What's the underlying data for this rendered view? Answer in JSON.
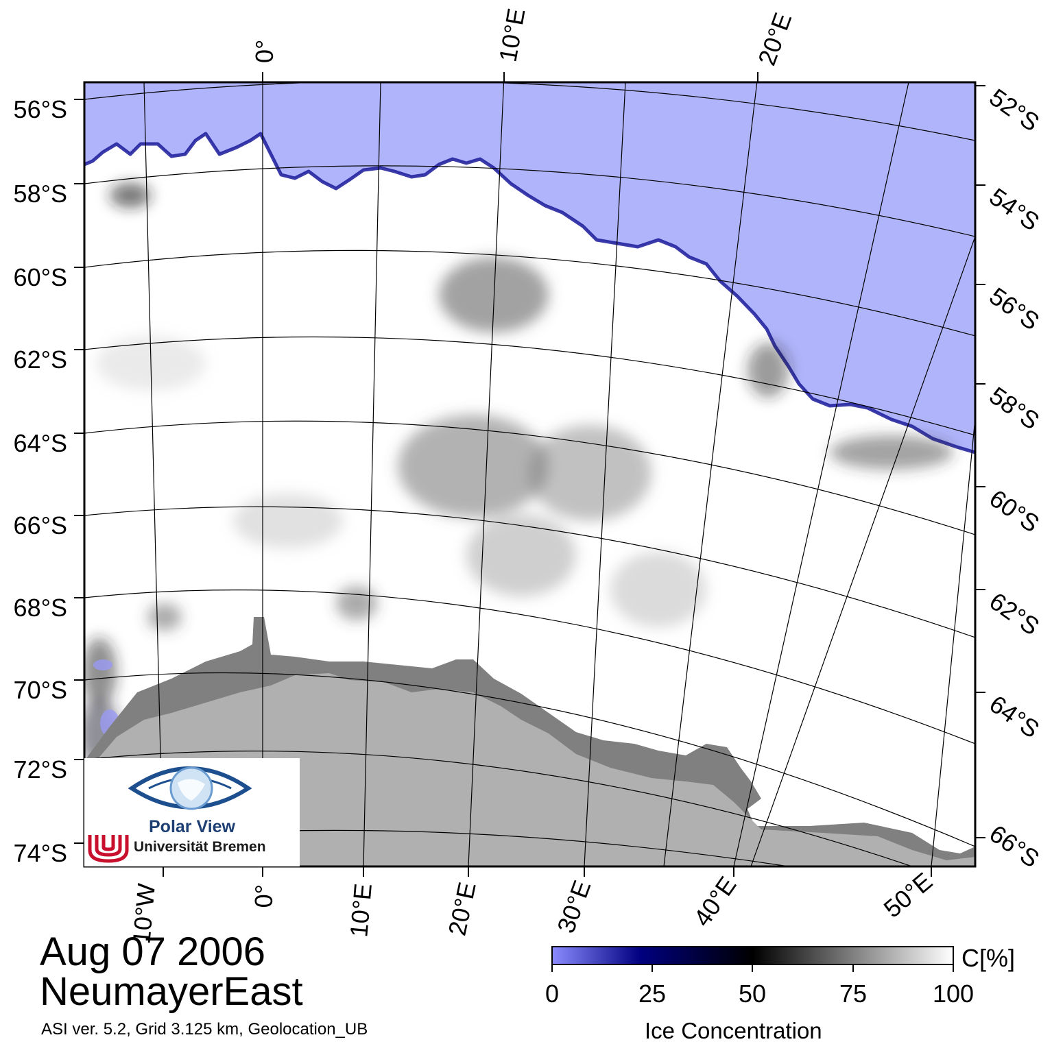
{
  "map": {
    "title_date": "Aug 07 2006",
    "region_name": "NeumayerEast",
    "metadata": "ASI ver. 5.2,  Grid 3.125 km, Geolocation_UB",
    "colors": {
      "open_water": "#b0b4fa",
      "ice_edge": "#1a1a9a",
      "sea_ice": "#ffffff",
      "land_ice_shelf": "#808080",
      "continent": "#b0b0b0",
      "graticule": "#000000"
    },
    "top_lon_labels": [
      "0°",
      "10°E",
      "20°E"
    ],
    "bottom_lon_labels": [
      "10°W",
      "0°",
      "10°E",
      "20°E",
      "30°E",
      "40°E",
      "50°E"
    ],
    "left_lat_labels": [
      "56°S",
      "58°S",
      "60°S",
      "62°S",
      "64°S",
      "66°S",
      "68°S",
      "70°S",
      "72°S",
      "74°S"
    ],
    "right_lat_labels": [
      "52°S",
      "54°S",
      "56°S",
      "58°S",
      "60°S",
      "62°S",
      "64°S",
      "66°S"
    ]
  },
  "colorbar": {
    "title": "Ice Concentration",
    "unit": "C[%]",
    "ticks": [
      "0",
      "25",
      "50",
      "75",
      "100"
    ],
    "stops": [
      {
        "value": 0,
        "color": "#8c8cff"
      },
      {
        "value": 22,
        "color": "#000080"
      },
      {
        "value": 50,
        "color": "#000000"
      },
      {
        "value": 100,
        "color": "#ffffff"
      }
    ]
  },
  "logo": {
    "title": "Polar View",
    "institution": "Universität Bremen",
    "icon": "eye-globe-icon",
    "mark_icon": "university-bremen-u-icon"
  }
}
